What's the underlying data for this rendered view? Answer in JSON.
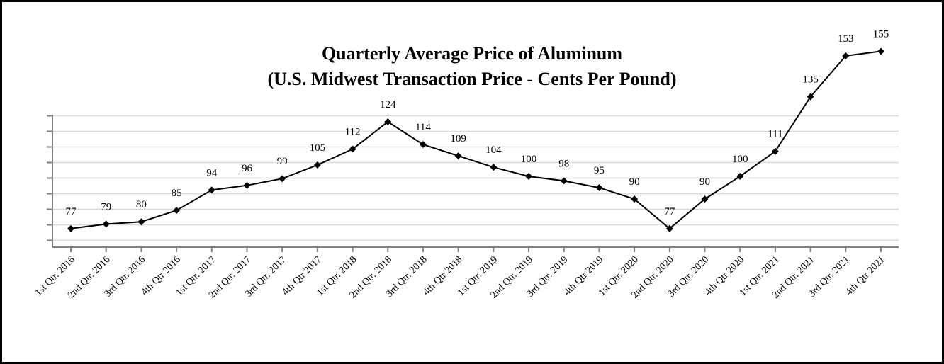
{
  "chart_data": {
    "type": "line",
    "title": "Quarterly Average Price of Aluminum",
    "subtitle": "(U.S. Midwest Transaction Price - Cents Per Pound)",
    "xlabel": "",
    "ylabel": "",
    "categories": [
      "1st Qtr. 2016",
      "2nd Qtr. 2016",
      "3rd Qtr. 2016",
      "4th Qtr 2016",
      "1st Qtr. 2017",
      "2nd Qtr. 2017",
      "3rd Qtr. 2017",
      "4th Qtr 2017",
      "1st Qtr. 2018",
      "2nd Qtr. 2018",
      "3rd Qtr. 2018",
      "4th Qtr 2018",
      "1st Qtr. 2019",
      "2nd Qtr. 2019",
      "3rd Qtr. 2019",
      "4th Qtr 2019",
      "1st Qtr. 2020",
      "2nd Qtr. 2020",
      "3rd Qtr. 2020",
      "4th Qtr 2020",
      "1st Qtr. 2021",
      "2nd Qtr. 2021",
      "3rd Qtr. 2021",
      "4th Qtr 2021"
    ],
    "series": [
      {
        "values": [
          77,
          79,
          80,
          85,
          94,
          96,
          99,
          105,
          112,
          124,
          114,
          109,
          104,
          100,
          98,
          95,
          90,
          77,
          90,
          100,
          111,
          135,
          153,
          155
        ]
      }
    ],
    "grid": true,
    "legend": "none",
    "colors": {
      "line": "#000000",
      "grid": "#d9d9d9",
      "axis": "#808080",
      "marker": "#000000"
    }
  }
}
